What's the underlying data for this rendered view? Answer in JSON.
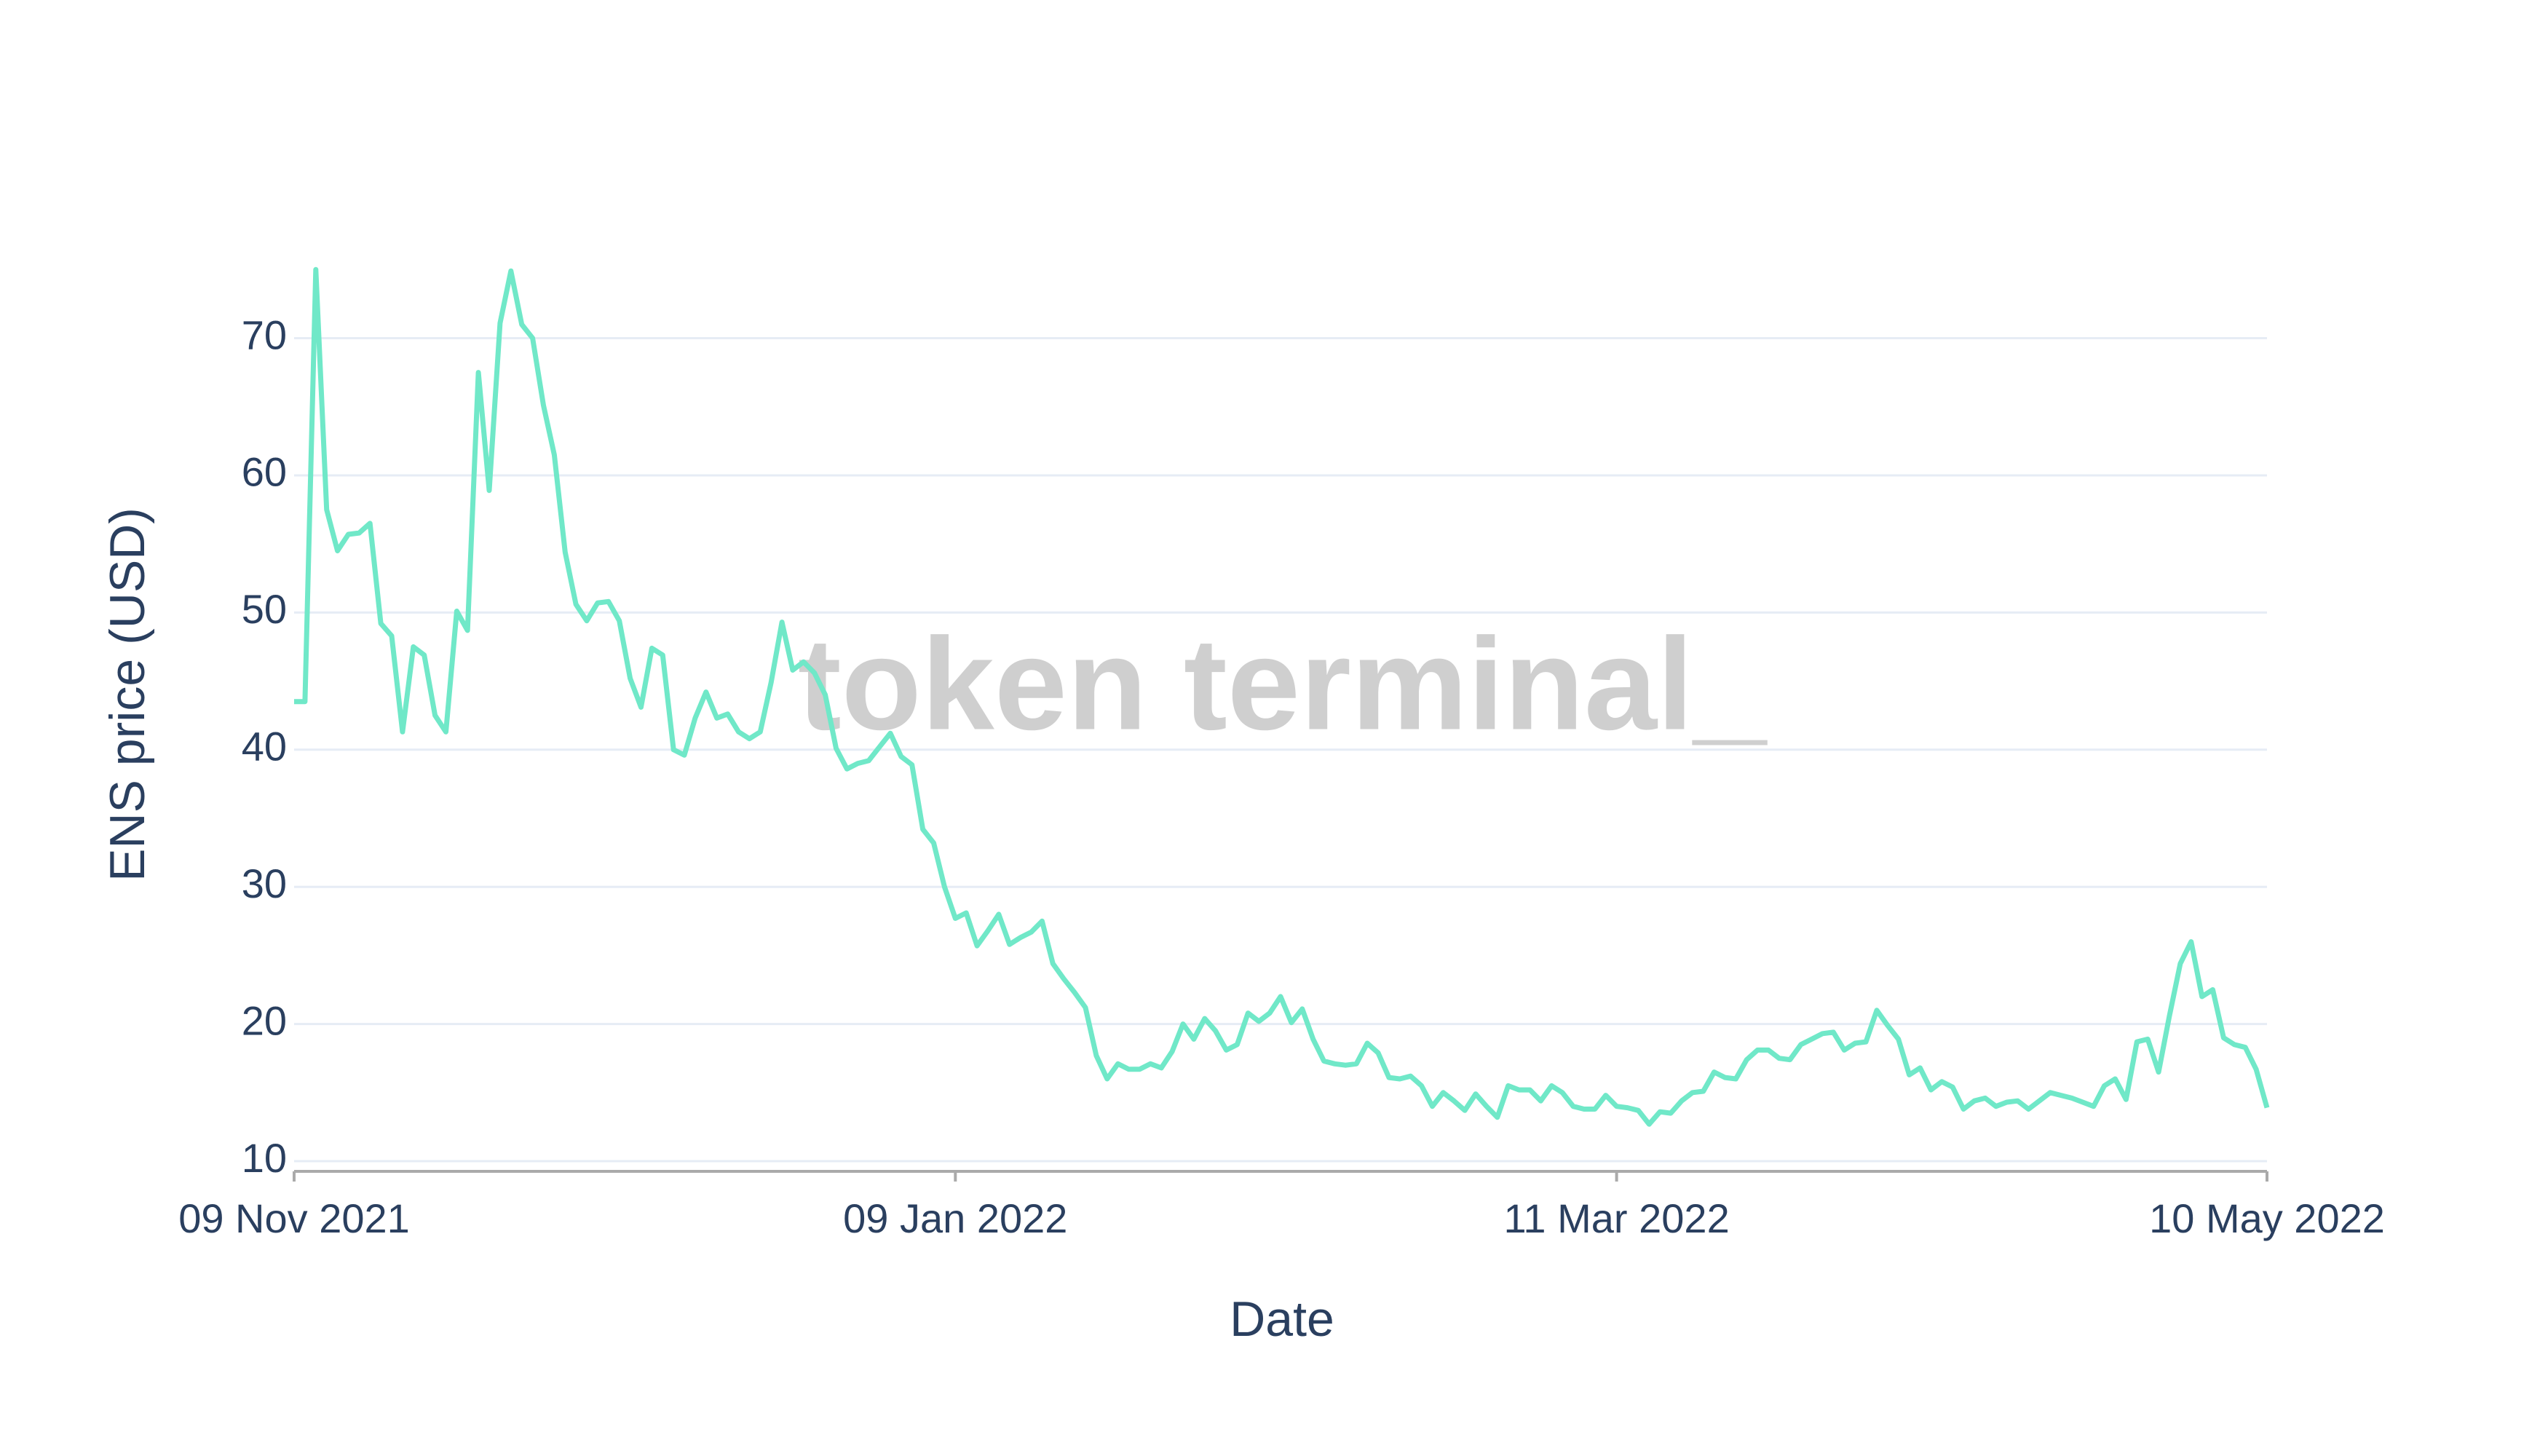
{
  "chart_data": {
    "type": "line",
    "x_label": "Date",
    "y_label": "ENS price (USD)",
    "watermark": "token terminal_",
    "x": [
      "2021-11-09",
      "2021-11-10",
      "2021-11-11",
      "2021-11-12",
      "2021-11-13",
      "2021-11-14",
      "2021-11-15",
      "2021-11-16",
      "2021-11-17",
      "2021-11-18",
      "2021-11-19",
      "2021-11-20",
      "2021-11-21",
      "2021-11-22",
      "2021-11-23",
      "2021-11-24",
      "2021-11-25",
      "2021-11-26",
      "2021-11-27",
      "2021-11-28",
      "2021-11-29",
      "2021-11-30",
      "2021-12-01",
      "2021-12-02",
      "2021-12-03",
      "2021-12-04",
      "2021-12-05",
      "2021-12-06",
      "2021-12-07",
      "2021-12-08",
      "2021-12-09",
      "2021-12-10",
      "2021-12-11",
      "2021-12-12",
      "2021-12-13",
      "2021-12-14",
      "2021-12-15",
      "2021-12-16",
      "2021-12-17",
      "2021-12-18",
      "2021-12-19",
      "2021-12-20",
      "2021-12-21",
      "2021-12-22",
      "2021-12-23",
      "2021-12-24",
      "2021-12-25",
      "2021-12-26",
      "2021-12-27",
      "2021-12-28",
      "2021-12-29",
      "2021-12-30",
      "2021-12-31",
      "2022-01-01",
      "2022-01-02",
      "2022-01-03",
      "2022-01-04",
      "2022-01-05",
      "2022-01-06",
      "2022-01-07",
      "2022-01-08",
      "2022-01-09",
      "2022-01-10",
      "2022-01-11",
      "2022-01-12",
      "2022-01-13",
      "2022-01-14",
      "2022-01-15",
      "2022-01-16",
      "2022-01-17",
      "2022-01-18",
      "2022-01-19",
      "2022-01-20",
      "2022-01-21",
      "2022-01-22",
      "2022-01-23",
      "2022-01-24",
      "2022-01-25",
      "2022-01-26",
      "2022-01-27",
      "2022-01-28",
      "2022-01-29",
      "2022-01-30",
      "2022-01-31",
      "2022-02-01",
      "2022-02-02",
      "2022-02-03",
      "2022-02-04",
      "2022-02-05",
      "2022-02-06",
      "2022-02-07",
      "2022-02-08",
      "2022-02-09",
      "2022-02-10",
      "2022-02-11",
      "2022-02-12",
      "2022-02-13",
      "2022-02-14",
      "2022-02-15",
      "2022-02-16",
      "2022-02-17",
      "2022-02-18",
      "2022-02-19",
      "2022-02-20",
      "2022-02-21",
      "2022-02-22",
      "2022-02-23",
      "2022-02-24",
      "2022-02-25",
      "2022-02-26",
      "2022-02-27",
      "2022-02-28",
      "2022-03-01",
      "2022-03-02",
      "2022-03-03",
      "2022-03-04",
      "2022-03-05",
      "2022-03-06",
      "2022-03-07",
      "2022-03-08",
      "2022-03-09",
      "2022-03-10",
      "2022-03-11",
      "2022-03-12",
      "2022-03-13",
      "2022-03-14",
      "2022-03-15",
      "2022-03-16",
      "2022-03-17",
      "2022-03-18",
      "2022-03-19",
      "2022-03-20",
      "2022-03-21",
      "2022-03-22",
      "2022-03-23",
      "2022-03-24",
      "2022-03-25",
      "2022-03-26",
      "2022-03-27",
      "2022-03-28",
      "2022-03-29",
      "2022-03-30",
      "2022-03-31",
      "2022-04-01",
      "2022-04-02",
      "2022-04-03",
      "2022-04-04",
      "2022-04-05",
      "2022-04-06",
      "2022-04-07",
      "2022-04-08",
      "2022-04-09",
      "2022-04-10",
      "2022-04-11",
      "2022-04-12",
      "2022-04-13",
      "2022-04-14",
      "2022-04-15",
      "2022-04-16",
      "2022-04-17",
      "2022-04-18",
      "2022-04-19",
      "2022-04-20",
      "2022-04-21",
      "2022-04-22",
      "2022-04-23",
      "2022-04-24",
      "2022-04-25",
      "2022-04-26",
      "2022-04-27",
      "2022-04-28",
      "2022-04-29",
      "2022-04-30",
      "2022-05-01",
      "2022-05-02",
      "2022-05-03",
      "2022-05-04",
      "2022-05-05",
      "2022-05-06",
      "2022-05-07",
      "2022-05-08",
      "2022-05-09",
      "2022-05-10"
    ],
    "series": [
      {
        "name": "ENS price (USD)",
        "color": "#70e8c8",
        "values": [
          43.5,
          43.5,
          75,
          57.5,
          54.5,
          55.7,
          55.8,
          56.5,
          49.2,
          48.3,
          41.3,
          47.5,
          46.9,
          42.5,
          41.3,
          50.1,
          48.7,
          67.5,
          58.9,
          71.1,
          74.9,
          71,
          70,
          65.1,
          61.5,
          54.4,
          50.6,
          49.4,
          50.7,
          50.8,
          49.4,
          45.2,
          43.1,
          47.4,
          46.9,
          40,
          39.6,
          42.3,
          44.2,
          42.3,
          42.6,
          41.3,
          40.8,
          41.3,
          44.9,
          49.3,
          45.8,
          46.4,
          45.6,
          44,
          40.1,
          38.6,
          39,
          39.2,
          40.2,
          41.2,
          39.5,
          38.9,
          34.2,
          33.2,
          30,
          27.7,
          28.1,
          25.7,
          26.8,
          28,
          25.8,
          26.3,
          26.7,
          27.5,
          24.4,
          23.3,
          22.3,
          21.2,
          17.7,
          16,
          17.1,
          16.7,
          16.7,
          17.1,
          16.8,
          18,
          20,
          18.9,
          20.4,
          19.5,
          18.1,
          18.5,
          20.8,
          20.2,
          20.8,
          22,
          20.1,
          21.1,
          18.9,
          17.3,
          17.1,
          17,
          17.1,
          18.6,
          17.9,
          16.1,
          16,
          16.2,
          15.5,
          14,
          15,
          14.4,
          13.7,
          14.9,
          14,
          13.2,
          15.5,
          15.2,
          15.2,
          14.4,
          15.5,
          15,
          14,
          13.8,
          13.8,
          14.8,
          14,
          13.9,
          13.7,
          12.7,
          13.6,
          13.5,
          14.4,
          15,
          15.1,
          16.5,
          16.1,
          16,
          17.4,
          18.1,
          18.1,
          17.5,
          17.4,
          18.5,
          18.9,
          19.3,
          19.4,
          18.1,
          18.6,
          18.7,
          21,
          19.9,
          18.9,
          16.3,
          16.8,
          15.2,
          15.8,
          15.4,
          13.8,
          14.4,
          14.6,
          14,
          14.3,
          14.4,
          13.8,
          14.4,
          15,
          14.8,
          14.6,
          14.3,
          14,
          15.5,
          16,
          14.5,
          18.7,
          18.9,
          16.5,
          20.6,
          24.4,
          26,
          22,
          22.5,
          19,
          18.5,
          18.3,
          16.7,
          13.9
        ]
      }
    ],
    "xlim": [
      "2021-11-09",
      "2022-05-10"
    ],
    "xticks": [
      {
        "value": "2021-11-09",
        "label": "09 Nov 2021"
      },
      {
        "value": "2022-01-09",
        "label": "09 Jan 2022"
      },
      {
        "value": "2022-03-11",
        "label": "11 Mar 2022"
      },
      {
        "value": "2022-05-10",
        "label": "10 May 2022"
      }
    ],
    "ylim": [
      9.26,
      75.6
    ],
    "yticks": [
      10,
      20,
      30,
      40,
      50,
      60,
      70
    ],
    "grid": true
  }
}
